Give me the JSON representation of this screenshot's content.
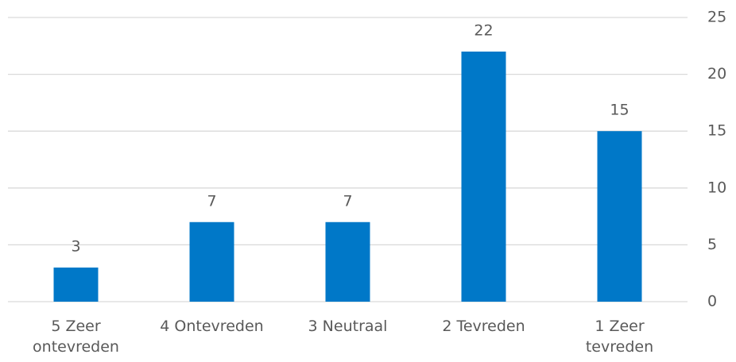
{
  "chart_data": {
    "type": "bar",
    "categories": [
      "5 Zeer ontevreden",
      "4 Ontevreden",
      "3 Neutraal",
      "2 Tevreden",
      "1 Zeer tevreden"
    ],
    "values": [
      3,
      7,
      7,
      22,
      15
    ],
    "color": "#0078c8",
    "ylim": [
      0,
      25
    ],
    "yticks": [
      0,
      5,
      10,
      15,
      20,
      25
    ],
    "grid": true,
    "y_axis_side": "right"
  }
}
